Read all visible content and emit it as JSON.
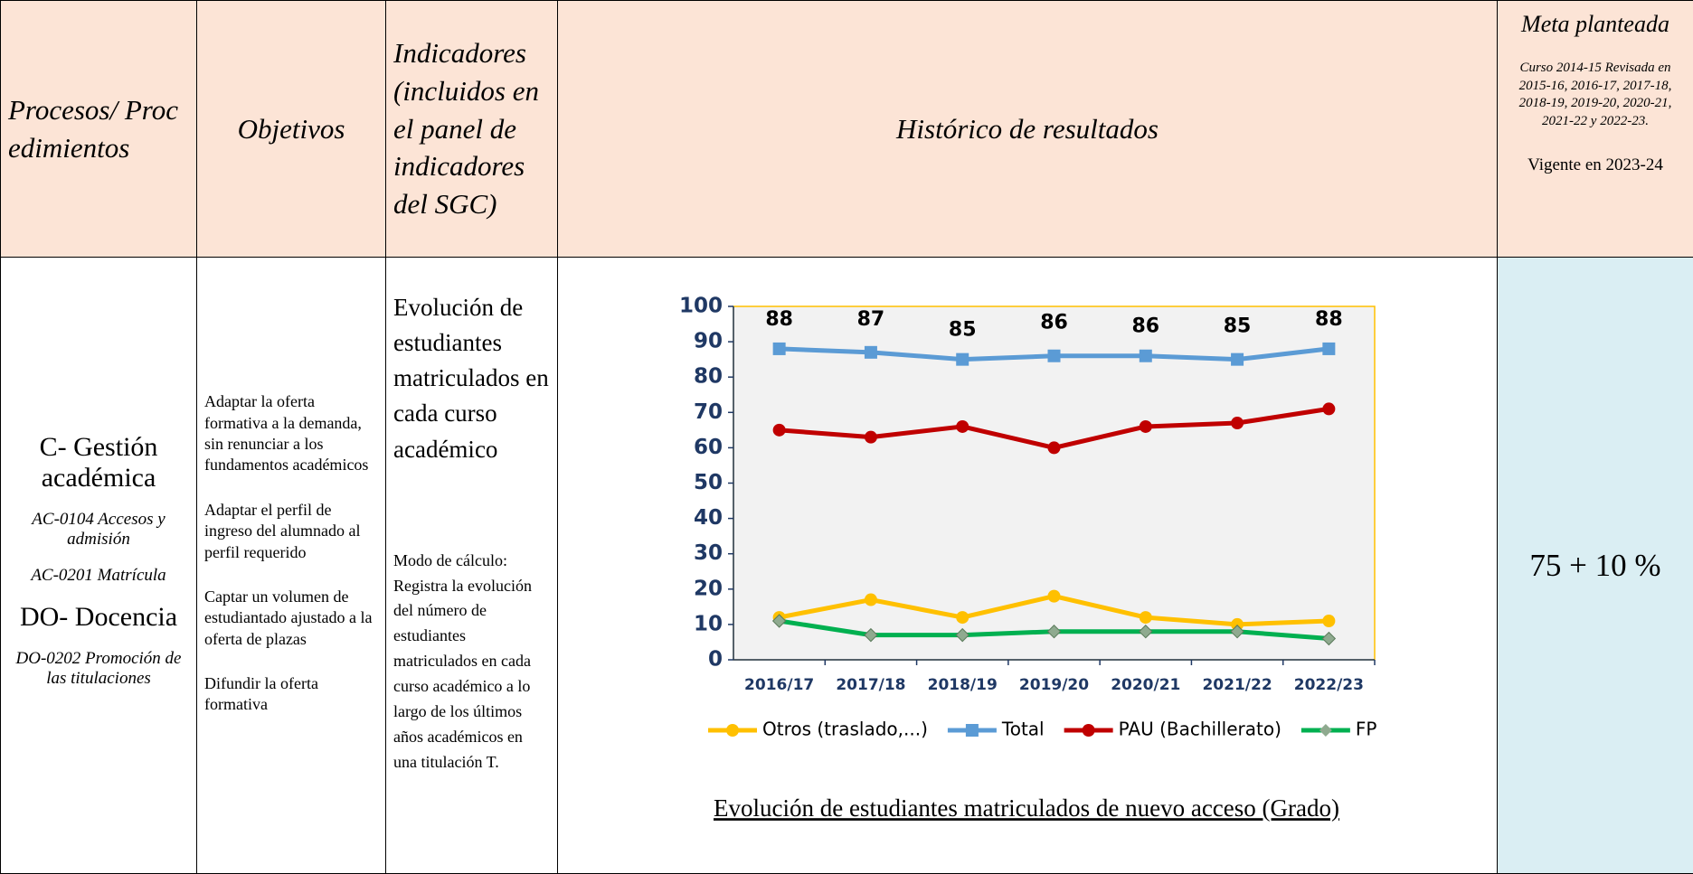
{
  "table": {
    "header": {
      "processes": "Procesos/ Procedimientos",
      "objectives": "Objetivos",
      "indicators": "Indicadores (incluidos en el panel de indicadores del SGC)",
      "history": "Histórico de resultados",
      "goal_title": "Meta planteada",
      "goal_note": "Curso 2014-15 Revisada en 2015-16, 2016-17, 2017-18, 2018-19, 2019-20, 2020-21, 2021-22 y 2022-23.",
      "goal_valid": "Vigente en 2023-24"
    },
    "row": {
      "processes": [
        "C- Gestión académica",
        "AC-0104 Accesos y admisión",
        "AC-0201 Matrícula",
        "DO- Docencia",
        "DO-0202 Promoción de las titulaciones"
      ],
      "objectives": [
        "Adaptar la oferta formativa a la demanda, sin renunciar a los fundamentos académicos",
        "Adaptar el perfil de ingreso del alumnado al perfil requerido",
        "Captar un volumen de estudiantado ajustado a la oferta de plazas",
        "Difundir la oferta formativa"
      ],
      "indicator": "Evolución de estudiantes matriculados en cada curso académico",
      "calculation": "Modo de cálculo: Registra la evolución del número de estudiantes matriculados en cada curso académico a lo largo de los últimos años académicos en una titulación T.",
      "goal": "75 + 10 %"
    }
  },
  "chart_data": {
    "type": "line",
    "title": "Evolución de estudiantes matriculados de nuevo acceso (Grado)",
    "categories": [
      "2016/17",
      "2017/18",
      "2018/19",
      "2019/20",
      "2020/21",
      "2021/22",
      "2022/23"
    ],
    "series": [
      {
        "name": "Otros (traslado,...)",
        "color": "#ffc000",
        "marker": "circle",
        "values": [
          12,
          17,
          12,
          18,
          12,
          10,
          11
        ]
      },
      {
        "name": "Total",
        "color": "#5b9bd5",
        "marker": "square",
        "data_labels": true,
        "values": [
          88,
          87,
          85,
          86,
          86,
          85,
          88
        ]
      },
      {
        "name": "PAU (Bachillerato)",
        "color": "#c00000",
        "marker": "circle",
        "values": [
          65,
          63,
          66,
          60,
          66,
          67,
          71
        ]
      },
      {
        "name": "FP",
        "color": "#00b050",
        "marker": "diamond",
        "values": [
          11,
          7,
          7,
          8,
          8,
          8,
          6
        ]
      }
    ],
    "ylim": [
      0,
      100
    ],
    "yticks": [
      0,
      10,
      20,
      30,
      40,
      50,
      60,
      70,
      80,
      90,
      100
    ],
    "legend": "bottom"
  }
}
